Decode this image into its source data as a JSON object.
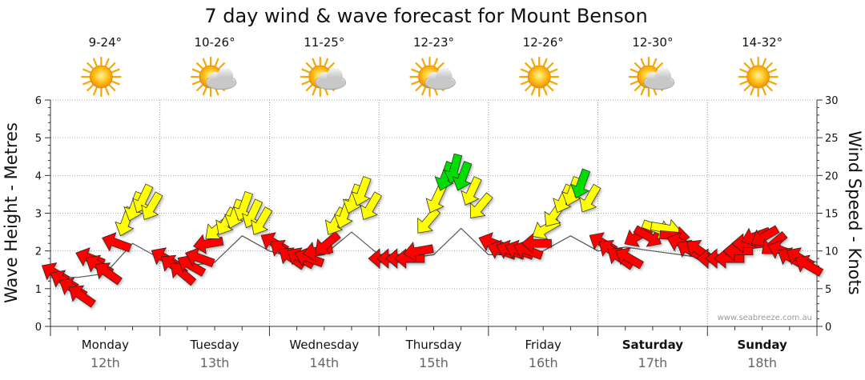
{
  "chart_data": {
    "type": "line",
    "title": "7 day wind & wave forecast for Mount Benson",
    "ylabel_left": "Wave Height - Metres",
    "ylabel_right": "Wind Speed - Knots",
    "ylim_left": [
      0,
      6
    ],
    "ylim_right": [
      0,
      30
    ],
    "yticks_left": [
      "0",
      "1",
      "2",
      "3",
      "4",
      "5",
      "6"
    ],
    "yticks_right": [
      "0",
      "5",
      "10",
      "15",
      "20",
      "25",
      "30"
    ],
    "grid": true,
    "credit": "www.seabreeze.com.au",
    "days": [
      {
        "name": "Monday",
        "date": "12th",
        "temp": "9-24°",
        "icon": "sunny-icon",
        "bold": false
      },
      {
        "name": "Tuesday",
        "date": "13th",
        "temp": "10-26°",
        "icon": "partly-cloudy-icon",
        "bold": false
      },
      {
        "name": "Wednesday",
        "date": "14th",
        "temp": "11-25°",
        "icon": "partly-cloudy-icon",
        "bold": false
      },
      {
        "name": "Thursday",
        "date": "15th",
        "temp": "12-23°",
        "icon": "partly-cloudy-icon",
        "bold": false
      },
      {
        "name": "Friday",
        "date": "16th",
        "temp": "12-26°",
        "icon": "sunny-icon",
        "bold": false
      },
      {
        "name": "Saturday",
        "date": "17th",
        "temp": "12-30°",
        "icon": "partly-cloudy-icon",
        "bold": true
      },
      {
        "name": "Sunday",
        "date": "18th",
        "temp": "14-32°",
        "icon": "sunny-icon",
        "bold": true
      }
    ],
    "series": [
      {
        "units": "knots",
        "color_scale": {
          "red": "#ff0000",
          "yellow": "#ffff00",
          "green": "#00dd00"
        },
        "x": [
          0.05,
          0.13,
          0.21,
          0.29,
          0.37,
          0.45,
          0.53,
          0.61,
          0.69,
          0.77,
          0.85,
          0.93,
          1.05,
          1.13,
          1.21,
          1.29,
          1.37,
          1.45,
          1.53,
          1.61,
          1.69,
          1.77,
          1.85,
          1.93,
          2.05,
          2.13,
          2.21,
          2.29,
          2.37,
          2.45,
          2.53,
          2.61,
          2.69,
          2.77,
          2.85,
          2.93,
          3.05,
          3.13,
          3.21,
          3.29,
          3.37,
          3.45,
          3.53,
          3.61,
          3.69,
          3.77,
          3.85,
          3.93,
          4.05,
          4.13,
          4.21,
          4.29,
          4.37,
          4.45,
          4.53,
          4.61,
          4.69,
          4.77,
          4.85,
          4.93,
          5.05,
          5.13,
          5.21,
          5.29,
          5.37,
          5.45,
          5.53,
          5.61,
          5.69,
          5.77,
          5.85,
          5.93,
          6.05,
          6.13,
          6.21,
          6.29,
          6.37,
          6.45,
          6.53,
          6.61,
          6.69,
          6.77,
          6.85,
          6.93
        ],
        "wind_speed": [
          7,
          6,
          5,
          4,
          9,
          8,
          7,
          11,
          14,
          16,
          17,
          16,
          9,
          8,
          7,
          8,
          9,
          11,
          13,
          14,
          15,
          16,
          15,
          14,
          11,
          10,
          9,
          9,
          9,
          10,
          11,
          14,
          15,
          17,
          18,
          16,
          9,
          9,
          9,
          9,
          10,
          14,
          17,
          20,
          21,
          20,
          18,
          16,
          11,
          10,
          10,
          10,
          10,
          11,
          13,
          15,
          17,
          18,
          19,
          17,
          11,
          10,
          9,
          9,
          12,
          12,
          13,
          13,
          12,
          11,
          10,
          10,
          9,
          9,
          9,
          10,
          11,
          12,
          12,
          11,
          10,
          9,
          9,
          8
        ],
        "wind_dir_deg": [
          300,
          300,
          300,
          305,
          290,
          300,
          305,
          290,
          200,
          200,
          205,
          210,
          300,
          305,
          310,
          300,
          290,
          260,
          230,
          210,
          200,
          200,
          205,
          210,
          300,
          305,
          305,
          300,
          290,
          260,
          230,
          210,
          200,
          200,
          200,
          210,
          270,
          270,
          270,
          270,
          260,
          220,
          205,
          200,
          195,
          200,
          205,
          220,
          290,
          290,
          290,
          290,
          290,
          270,
          240,
          215,
          205,
          200,
          200,
          210,
          300,
          305,
          305,
          300,
          240,
          120,
          110,
          100,
          95,
          290,
          300,
          305,
          270,
          270,
          270,
          270,
          270,
          250,
          240,
          230,
          290,
          300,
          300,
          300
        ]
      },
      {
        "name": "Wave Height",
        "units": "m",
        "x": [
          0.0,
          0.25,
          0.5,
          0.75,
          1.0,
          1.25,
          1.5,
          1.75,
          2.0,
          2.25,
          2.5,
          2.75,
          3.0,
          3.25,
          3.5,
          3.75,
          4.0,
          4.25,
          4.5,
          4.75,
          5.0,
          5.25,
          5.5,
          5.75,
          6.0,
          6.25,
          6.5,
          6.75,
          7.0
        ],
        "values": [
          1.3,
          1.3,
          1.4,
          2.2,
          1.8,
          1.6,
          1.7,
          2.4,
          2.0,
          1.8,
          1.9,
          2.5,
          1.9,
          1.8,
          1.9,
          2.6,
          1.9,
          1.9,
          2.0,
          2.4,
          2.0,
          2.1,
          2.0,
          1.9,
          1.8,
          2.0,
          2.1,
          1.9,
          1.7
        ]
      }
    ]
  }
}
